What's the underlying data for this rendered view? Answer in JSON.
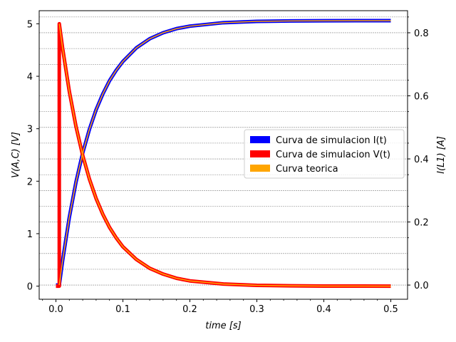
{
  "chart_data": {
    "type": "line",
    "xlabel": "time [s]",
    "ylabel_left": "V(A,C) [V]",
    "ylabel_right": "I(L1) [A]",
    "xlim": [
      -0.025,
      0.525
    ],
    "ylim_left": [
      -0.25,
      5.25
    ],
    "ylim_right": [
      -0.045,
      0.87
    ],
    "x_ticks": [
      0.0,
      0.1,
      0.2,
      0.3,
      0.4,
      0.5
    ],
    "x_tick_labels": [
      "0.0",
      "0.1",
      "0.2",
      "0.3",
      "0.4",
      "0.5"
    ],
    "y_left_ticks": [
      0,
      1,
      2,
      3,
      4,
      5
    ],
    "y_left_tick_labels": [
      "0",
      "1",
      "2",
      "3",
      "4",
      "5"
    ],
    "y_right_ticks": [
      0.0,
      0.2,
      0.4,
      0.6,
      0.8
    ],
    "y_right_tick_labels": [
      "0.0",
      "0.2",
      "0.4",
      "0.6",
      "0.8"
    ],
    "grid": "horizontal dashed lines on right axis",
    "legend_position": "center-right",
    "legend": [
      {
        "label": "Curva de simulacion I(t)",
        "color": "#0000ff"
      },
      {
        "label": "Curva de simulacion V(t)",
        "color": "#ff0000"
      },
      {
        "label": "Curva teorica",
        "color": "#ffa500"
      }
    ],
    "series": [
      {
        "name": "Curva de simulacion I(t)",
        "axis": "right",
        "color": "#0000ff",
        "x": [
          0.0,
          0.005,
          0.01,
          0.02,
          0.03,
          0.04,
          0.05,
          0.06,
          0.07,
          0.08,
          0.09,
          0.1,
          0.12,
          0.14,
          0.16,
          0.18,
          0.2,
          0.25,
          0.3,
          0.35,
          0.4,
          0.45,
          0.5
        ],
        "y": [
          0.0,
          0.0,
          0.078,
          0.215,
          0.327,
          0.419,
          0.494,
          0.556,
          0.606,
          0.648,
          0.681,
          0.709,
          0.752,
          0.781,
          0.8,
          0.813,
          0.821,
          0.832,
          0.836,
          0.8375,
          0.838,
          0.8383,
          0.8385
        ]
      },
      {
        "name": "Curva de simulacion V(t)",
        "axis": "left",
        "color": "#ff0000",
        "x": [
          0.0,
          0.005,
          0.005,
          0.01,
          0.02,
          0.03,
          0.04,
          0.05,
          0.06,
          0.07,
          0.08,
          0.09,
          0.1,
          0.12,
          0.14,
          0.16,
          0.18,
          0.2,
          0.25,
          0.3,
          0.35,
          0.4,
          0.45,
          0.5
        ],
        "y": [
          0.0,
          0.0,
          5.0,
          4.53,
          3.71,
          3.04,
          2.49,
          2.04,
          1.67,
          1.37,
          1.12,
          0.92,
          0.75,
          0.51,
          0.34,
          0.23,
          0.15,
          0.1,
          0.04,
          0.015,
          0.006,
          0.002,
          0.001,
          0.0
        ]
      },
      {
        "name": "Curva teorica (V)",
        "axis": "left",
        "color": "#ffa500",
        "x": [
          0.005,
          0.01,
          0.02,
          0.03,
          0.04,
          0.05,
          0.06,
          0.07,
          0.08,
          0.09,
          0.1,
          0.12,
          0.14,
          0.16,
          0.18,
          0.2,
          0.25,
          0.3,
          0.35,
          0.4,
          0.45,
          0.5
        ],
        "y": [
          5.0,
          4.53,
          3.71,
          3.04,
          2.49,
          2.04,
          1.67,
          1.37,
          1.12,
          0.92,
          0.75,
          0.51,
          0.34,
          0.23,
          0.15,
          0.1,
          0.04,
          0.015,
          0.006,
          0.002,
          0.001,
          0.0
        ]
      },
      {
        "name": "Curva teorica (I)",
        "axis": "right",
        "color": "#ffa500",
        "x": [
          0.005,
          0.01,
          0.02,
          0.03,
          0.04,
          0.05,
          0.06,
          0.07,
          0.08,
          0.09,
          0.1,
          0.12,
          0.14,
          0.16,
          0.18,
          0.2,
          0.25,
          0.3,
          0.35,
          0.4,
          0.45,
          0.5
        ],
        "y": [
          0.0,
          0.078,
          0.215,
          0.327,
          0.419,
          0.494,
          0.556,
          0.606,
          0.648,
          0.681,
          0.709,
          0.752,
          0.781,
          0.8,
          0.813,
          0.821,
          0.832,
          0.836,
          0.8375,
          0.838,
          0.8383,
          0.8385
        ]
      }
    ]
  }
}
